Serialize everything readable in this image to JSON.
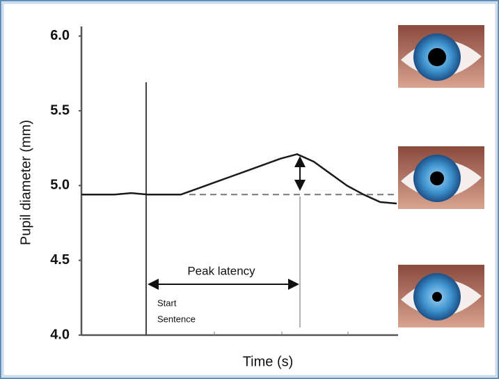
{
  "chart_data": {
    "type": "line",
    "y_label": "Pupil diameter (mm)",
    "x_label": "Time (s)",
    "values": [
      4.94,
      4.94,
      4.94,
      4.95,
      4.94,
      4.94,
      4.94,
      4.98,
      5.02,
      5.06,
      5.1,
      5.14,
      5.18,
      5.21,
      5.16,
      5.08,
      5.0,
      4.94,
      4.89,
      4.88
    ],
    "color": "#1a1a1a",
    "reference_line": 4.94,
    "ylim": [
      4.0,
      6.05
    ],
    "yticks": [
      {
        "value": 4,
        "label": "4.0"
      },
      {
        "value": 4.5,
        "label": "4.5"
      },
      {
        "value": 5,
        "label": "5.0"
      },
      {
        "value": 5.5,
        "label": "5.5"
      },
      {
        "value": 6,
        "label": "6.0"
      }
    ],
    "annotations": {
      "peak": "Peak latency",
      "start": "Start",
      "sentence": "Sentence"
    }
  }
}
